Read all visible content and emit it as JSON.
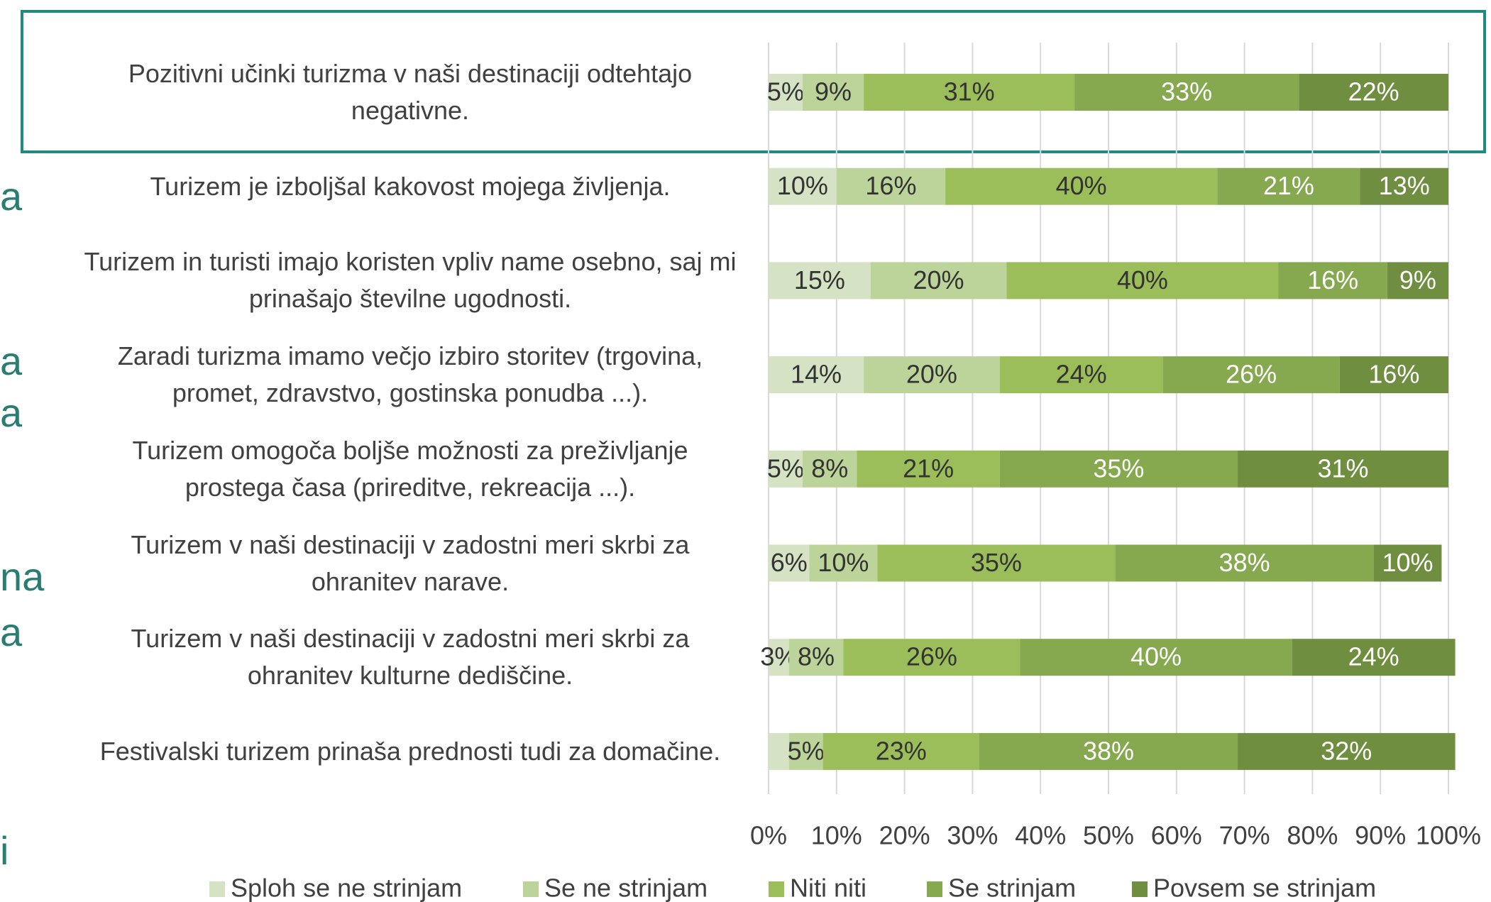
{
  "chart_data": {
    "type": "stacked-bar-horizontal",
    "categories": [
      "Pozitivni učinki turizma v naši destinaciji odtehtajo negativne.",
      "Turizem je izboljšal kakovost mojega življenja.",
      "Turizem in turisti imajo koristen vpliv name osebno, saj mi prinašajo številne ugodnosti.",
      "Zaradi turizma imamo večjo izbiro storitev (trgovina, promet, zdravstvo, gostinska ponudba ...).",
      "Turizem omogoča boljše možnosti za preživljanje prostega časa (prireditve, rekreacija ...).",
      "Turizem v naši destinaciji v zadostni meri skrbi za ohranitev narave.",
      "Turizem v naši destinaciji v zadostni meri skrbi za ohranitev kulturne dediščine.",
      "Festivalski turizem prinaša prednosti tudi za domačine."
    ],
    "series": [
      {
        "name": "Sploh se ne strinjam",
        "color": "#d5e2c3",
        "label_color": "#333333",
        "values": [
          5,
          10,
          15,
          14,
          5,
          6,
          3,
          3
        ],
        "value_labels": [
          "5%",
          "10%",
          "15%",
          "14%",
          "5%",
          "6%",
          "3%",
          null
        ]
      },
      {
        "name": "Se ne strinjam",
        "color": "#bcd39a",
        "label_color": "#333333",
        "values": [
          9,
          16,
          20,
          20,
          8,
          10,
          8,
          5
        ],
        "value_labels": [
          "9%",
          "16%",
          "20%",
          "20%",
          "8%",
          "10%",
          "8%",
          "5%"
        ]
      },
      {
        "name": "Niti niti",
        "color": "#9bbd5a",
        "label_color": "#333333",
        "values": [
          31,
          40,
          40,
          24,
          21,
          35,
          26,
          23
        ],
        "value_labels": [
          "31%",
          "40%",
          "40%",
          "24%",
          "21%",
          "35%",
          "26%",
          "23%"
        ]
      },
      {
        "name": "Se strinjam",
        "color": "#86a84e",
        "label_color": "#ffffff",
        "values": [
          33,
          21,
          16,
          26,
          35,
          38,
          40,
          38
        ],
        "value_labels": [
          "33%",
          "21%",
          "16%",
          "26%",
          "35%",
          "38%",
          "40%",
          "38%"
        ]
      },
      {
        "name": "Povsem se strinjam",
        "color": "#6f8e3f",
        "label_color": "#ffffff",
        "values": [
          22,
          13,
          9,
          16,
          31,
          10,
          24,
          32
        ],
        "value_labels": [
          "22%",
          "13%",
          "9%",
          "16%",
          "31%",
          "10%",
          "24%",
          "32%"
        ]
      }
    ],
    "xlim": [
      0,
      100
    ],
    "xticks": [
      {
        "value": 0,
        "label": "0%"
      },
      {
        "value": 10,
        "label": "10%"
      },
      {
        "value": 20,
        "label": "20%"
      },
      {
        "value": 30,
        "label": "30%"
      },
      {
        "value": 40,
        "label": "40%"
      },
      {
        "value": 50,
        "label": "50%"
      },
      {
        "value": 60,
        "label": "60%"
      },
      {
        "value": 70,
        "label": "70%"
      },
      {
        "value": 80,
        "label": "80%"
      },
      {
        "value": 90,
        "label": "90%"
      },
      {
        "value": 100,
        "label": "100%"
      }
    ],
    "grid": true,
    "legend": "bottom"
  },
  "fragments": [
    "a",
    "a",
    "a",
    "na",
    "a",
    "i"
  ]
}
